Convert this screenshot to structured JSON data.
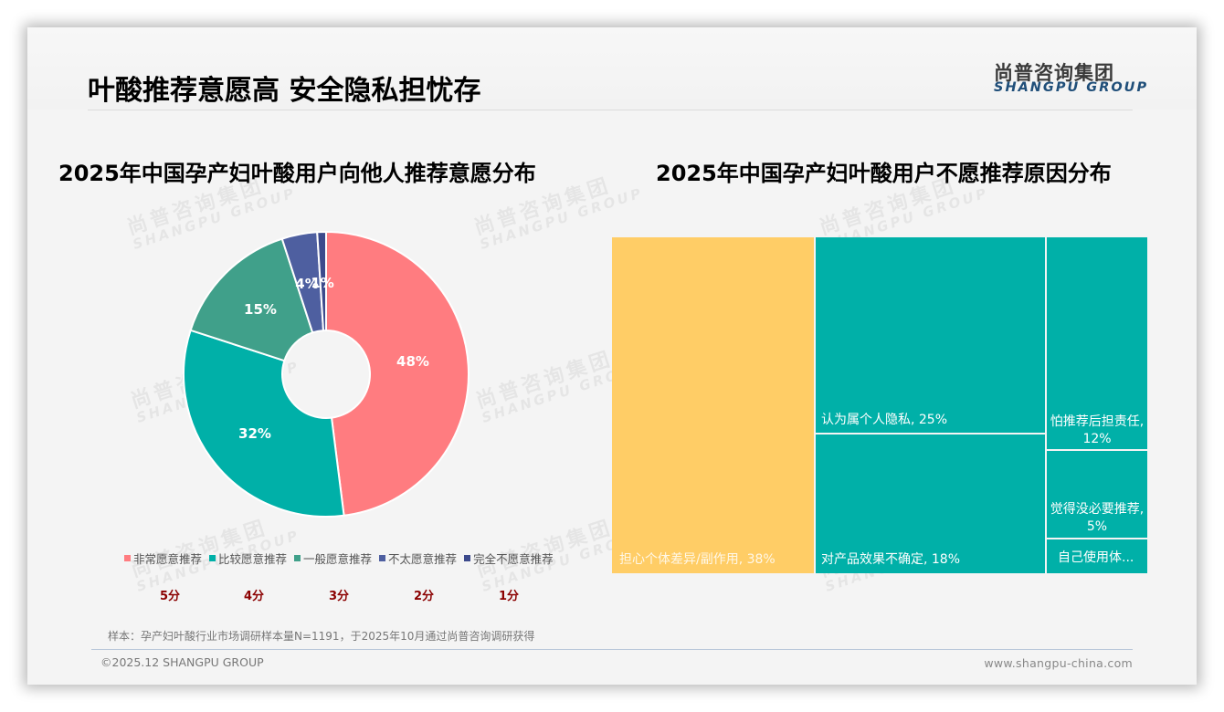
{
  "header": {
    "title": "叶酸推荐意愿高 安全隐私担忧存",
    "logo_cn": "尚普咨询集团",
    "logo_en": "SHANGPU GROUP"
  },
  "watermark": {
    "cn": "尚普咨询集团",
    "en": "SHANGPU GROUP"
  },
  "colors": {
    "very_willing": "#ff7c80",
    "fairly_willing": "#00b0a8",
    "neutral": "#40a08a",
    "not_very_willing": "#4e5fa0",
    "not_willing_at_all": "#3c4a8c",
    "treemap_highlight": "#ffcd66",
    "treemap_default": "#00b0a8",
    "score_text": "#8b0000"
  },
  "chart_data": [
    {
      "type": "pie",
      "subtype": "donut",
      "title": "2025年中国孕产妇叶酸用户向他人推荐意愿分布",
      "categories": [
        "非常愿意推荐",
        "比较愿意推荐",
        "一般愿意推荐",
        "不太愿意推荐",
        "完全不愿意推荐"
      ],
      "values": [
        48,
        32,
        15,
        4,
        1
      ],
      "labels": [
        "48%",
        "32%",
        "15%",
        "4%",
        "1%"
      ],
      "scores": [
        "5分",
        "4分",
        "3分",
        "2分",
        "1分"
      ],
      "legend_position": "bottom"
    },
    {
      "type": "treemap",
      "title": "2025年中国孕产妇叶酸用户不愿推荐原因分布",
      "categories": [
        "担心个体差异/副作用",
        "认为属个人隐私",
        "对产品效果不确定",
        "怕推荐后担责任",
        "觉得没必要推荐",
        "自己使用体..."
      ],
      "values": [
        38,
        25,
        18,
        12,
        5,
        2
      ],
      "labels": [
        "担心个体差异/副作用, 38%",
        "认为属个人隐私, 25%",
        "对产品效果不确定, 18%",
        "怕推荐后担责任, 12%",
        "觉得没必要推荐, 5%",
        "自己使用体..."
      ]
    }
  ],
  "donut": {
    "title": "2025年中国孕产妇叶酸用户向他人推荐意愿分布",
    "segments": [
      {
        "label": "非常愿意推荐",
        "value": "48%",
        "score": "5分"
      },
      {
        "label": "比较愿意推荐",
        "value": "32%",
        "score": "4分"
      },
      {
        "label": "一般愿意推荐",
        "value": "15%",
        "score": "3分"
      },
      {
        "label": "不太愿意推荐",
        "value": "4%",
        "score": "2分"
      },
      {
        "label": "完全不愿意推荐",
        "value": "1%",
        "score": "1分"
      }
    ]
  },
  "treemap": {
    "title": "2025年中国孕产妇叶酸用户不愿推荐原因分布",
    "tiles": [
      {
        "label": "担心个体差异/副作用, 38%"
      },
      {
        "label": "认为属个人隐私, 25%"
      },
      {
        "label": "对产品效果不确定, 18%"
      },
      {
        "label": "怕推荐后担责任, 12%"
      },
      {
        "label": "觉得没必要推荐, 5%"
      },
      {
        "label": "自己使用体..."
      }
    ]
  },
  "footer": {
    "source": "样本：孕产妇叶酸行业市场调研样本量N=1191，于2025年10月通过尚普咨询调研获得",
    "copyright": "©2025.12 SHANGPU GROUP",
    "url": "www.shangpu-china.com"
  }
}
